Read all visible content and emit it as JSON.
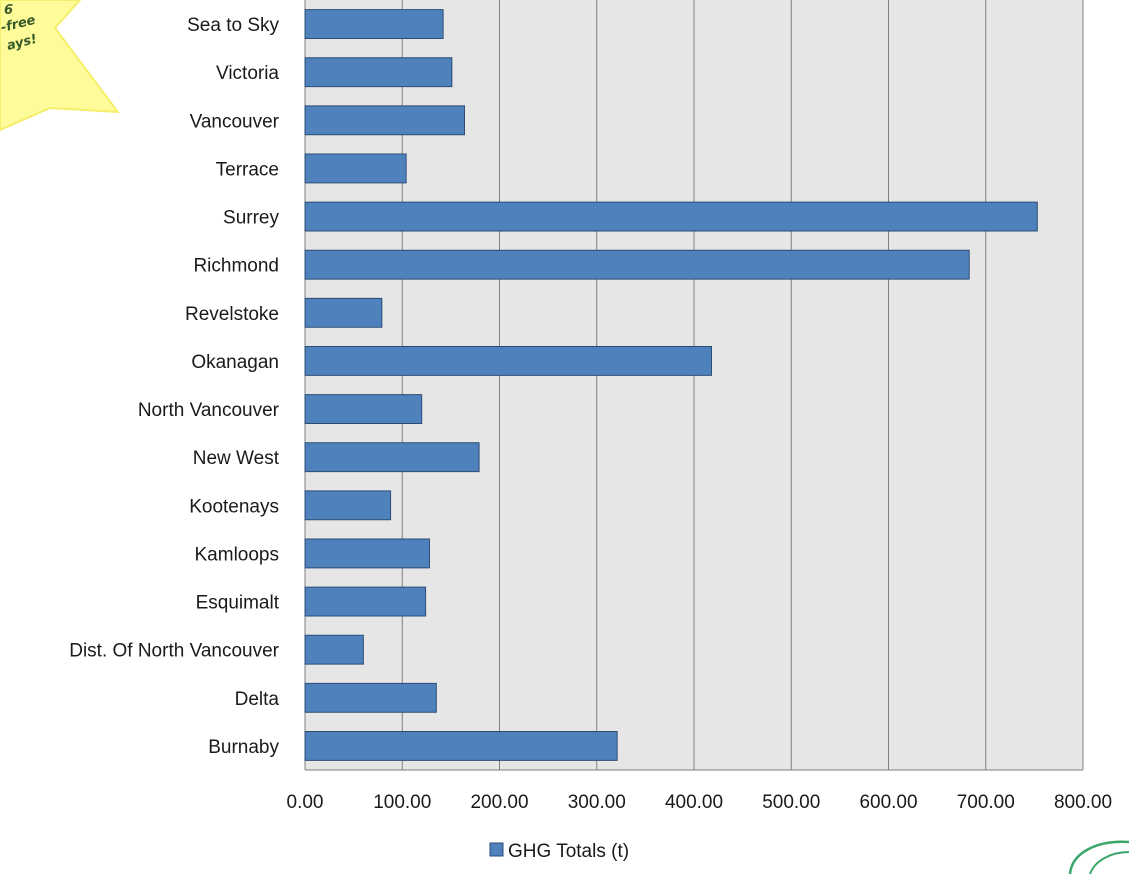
{
  "corner_badge": {
    "lines": [
      "6",
      "-free",
      "ays!"
    ],
    "fill_color": "#fdfb9a"
  },
  "chart_data": {
    "type": "bar",
    "orientation": "horizontal",
    "categories": [
      "Sea to Sky",
      "Victoria",
      "Vancouver",
      "Terrace",
      "Surrey",
      "Richmond",
      "Revelstoke",
      "Okanagan",
      "North Vancouver",
      "New West",
      "Kootenays",
      "Kamloops",
      "Esquimalt",
      "Dist. Of North Vancouver",
      "Delta",
      "Burnaby"
    ],
    "series": [
      {
        "name": "GHG Totals (t)",
        "values": [
          142,
          151,
          164,
          104,
          753,
          683,
          79,
          418,
          120,
          179,
          88,
          128,
          124,
          60,
          135,
          321
        ]
      }
    ],
    "xlim": [
      0,
      800
    ],
    "x_ticks": [
      "0.00",
      "100.00",
      "200.00",
      "300.00",
      "400.00",
      "500.00",
      "600.00",
      "700.00",
      "800.00"
    ],
    "grid": true,
    "legend_position": "bottom",
    "bar_color": "#4f81bd",
    "bar_border_color": "#2c4d75",
    "plot_background": "#e6e6e6",
    "gridline_color": "#7f7f7f"
  }
}
